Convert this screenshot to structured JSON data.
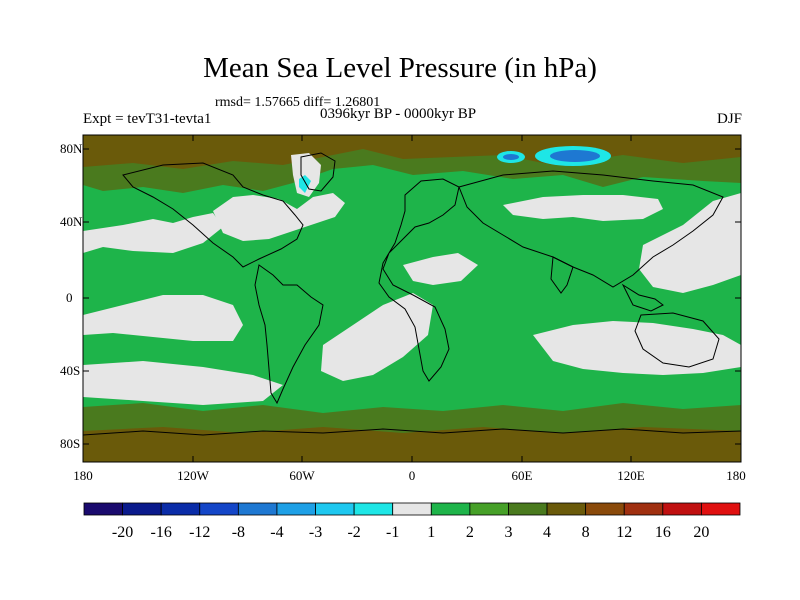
{
  "title": "Mean Sea Level Pressure (in hPa)",
  "stats": "rmsd= 1.57665 diff= 1.26801",
  "expt": "Expt = tevT31-tevta1",
  "period": "0396kyr BP - 0000kyr BP",
  "season": "DJF",
  "lat_labels": [
    "80N",
    "40N",
    "0",
    "40S",
    "80S"
  ],
  "lon_labels": [
    "180",
    "120W",
    "60W",
    "0",
    "60E",
    "120E",
    "180"
  ],
  "colorbar": {
    "labels": [
      "-20",
      "-16",
      "-12",
      "-8",
      "-4",
      "-3",
      "-2",
      "-1",
      "1",
      "2",
      "3",
      "4",
      "8",
      "12",
      "16",
      "20"
    ],
    "colors": [
      "#1a0a6e",
      "#0a1a8c",
      "#0a2ca8",
      "#1446c8",
      "#1e78d2",
      "#1ea0e6",
      "#1ec8f0",
      "#1ee6e6",
      "#e6e6e6",
      "#1eb44a",
      "#46a028",
      "#4a7a1e",
      "#6a5a0a",
      "#8a4a0a",
      "#a03010",
      "#c01010",
      "#e01010"
    ]
  },
  "field_colors": {
    "near_zero": "#e6e6e6",
    "one_to_two": "#1eb44a",
    "two_to_three": "#46a028",
    "three_to_four": "#4a7a1e",
    "four_to_eight": "#6a5a0a",
    "negative": "#1e78d2",
    "strong_negative": "#1ec8f0"
  }
}
